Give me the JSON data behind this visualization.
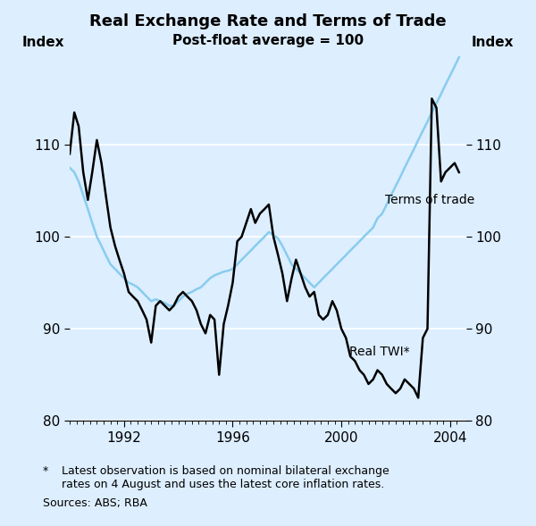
{
  "title": "Real Exchange Rate and Terms of Trade",
  "subtitle": "Post-float average = 100",
  "ylabel_left": "Index",
  "ylabel_right": "Index",
  "footnote_star": "Latest observation is based on nominal bilateral exchange\nrates on 4 August and uses the latest core inflation rates.",
  "footnote_sources": "Sources: ABS; RBA",
  "background_color": "#ddeeff",
  "plot_bg_color": "#ddeeff",
  "ylim": [
    80,
    120
  ],
  "yticks": [
    80,
    90,
    100,
    110
  ],
  "xlim_start": 1990.0,
  "xlim_end": 2004.6,
  "xtick_labels": [
    "1992",
    "1996",
    "2000",
    "2004"
  ],
  "xtick_positions": [
    1992,
    1996,
    2000,
    2004
  ],
  "twi_color": "#000000",
  "tot_color": "#88ccee",
  "twi_label": "Real TWI*",
  "tot_label": "Terms of trade",
  "twi_linewidth": 1.8,
  "tot_linewidth": 1.8,
  "real_twi": {
    "x": [
      1990.0,
      1990.17,
      1990.33,
      1990.5,
      1990.67,
      1990.83,
      1991.0,
      1991.17,
      1991.33,
      1991.5,
      1991.67,
      1991.83,
      1992.0,
      1992.17,
      1992.33,
      1992.5,
      1992.67,
      1992.83,
      1993.0,
      1993.17,
      1993.33,
      1993.5,
      1993.67,
      1993.83,
      1994.0,
      1994.17,
      1994.33,
      1994.5,
      1994.67,
      1994.83,
      1995.0,
      1995.17,
      1995.33,
      1995.5,
      1995.67,
      1995.83,
      1996.0,
      1996.17,
      1996.33,
      1996.5,
      1996.67,
      1996.83,
      1997.0,
      1997.17,
      1997.33,
      1997.5,
      1997.67,
      1997.83,
      1998.0,
      1998.17,
      1998.33,
      1998.5,
      1998.67,
      1998.83,
      1999.0,
      1999.17,
      1999.33,
      1999.5,
      1999.67,
      1999.83,
      2000.0,
      2000.17,
      2000.33,
      2000.5,
      2000.67,
      2000.83,
      2001.0,
      2001.17,
      2001.33,
      2001.5,
      2001.67,
      2001.83,
      2002.0,
      2002.17,
      2002.33,
      2002.5,
      2002.67,
      2002.83,
      2003.0,
      2003.17,
      2003.33,
      2003.5,
      2003.67,
      2003.83,
      2004.0,
      2004.17,
      2004.33
    ],
    "y": [
      109.0,
      113.5,
      112.0,
      107.0,
      104.0,
      107.0,
      110.5,
      108.0,
      104.5,
      101.0,
      99.0,
      97.5,
      96.0,
      94.0,
      93.5,
      93.0,
      92.0,
      91.0,
      88.5,
      92.5,
      93.0,
      92.5,
      92.0,
      92.5,
      93.5,
      94.0,
      93.5,
      93.0,
      92.0,
      90.5,
      89.5,
      91.5,
      91.0,
      85.0,
      90.5,
      92.5,
      95.0,
      99.5,
      100.0,
      101.5,
      103.0,
      101.5,
      102.5,
      103.0,
      103.5,
      100.0,
      98.0,
      96.0,
      93.0,
      95.5,
      97.5,
      96.0,
      94.5,
      93.5,
      94.0,
      91.5,
      91.0,
      91.5,
      93.0,
      92.0,
      90.0,
      89.0,
      87.0,
      86.5,
      85.5,
      85.0,
      84.0,
      84.5,
      85.5,
      85.0,
      84.0,
      83.5,
      83.0,
      83.5,
      84.5,
      84.0,
      83.5,
      82.5,
      89.0,
      90.0,
      115.0,
      114.0,
      106.0,
      107.0,
      107.5,
      108.0,
      107.0
    ]
  },
  "terms_of_trade": {
    "x": [
      1990.0,
      1990.17,
      1990.33,
      1990.5,
      1990.67,
      1990.83,
      1991.0,
      1991.17,
      1991.33,
      1991.5,
      1991.67,
      1991.83,
      1992.0,
      1992.17,
      1992.33,
      1992.5,
      1992.67,
      1992.83,
      1993.0,
      1993.17,
      1993.33,
      1993.5,
      1993.67,
      1993.83,
      1994.0,
      1994.17,
      1994.33,
      1994.5,
      1994.67,
      1994.83,
      1995.0,
      1995.17,
      1995.33,
      1995.5,
      1995.67,
      1995.83,
      1996.0,
      1996.17,
      1996.33,
      1996.5,
      1996.67,
      1996.83,
      1997.0,
      1997.17,
      1997.33,
      1997.5,
      1997.67,
      1997.83,
      1998.0,
      1998.17,
      1998.33,
      1998.5,
      1998.67,
      1998.83,
      1999.0,
      1999.17,
      1999.33,
      1999.5,
      1999.67,
      1999.83,
      2000.0,
      2000.17,
      2000.33,
      2000.5,
      2000.67,
      2000.83,
      2001.0,
      2001.17,
      2001.33,
      2001.5,
      2001.67,
      2001.83,
      2002.0,
      2002.17,
      2002.33,
      2002.5,
      2002.67,
      2002.83,
      2003.0,
      2003.17,
      2003.33,
      2003.5,
      2003.67,
      2003.83,
      2004.0,
      2004.17,
      2004.33
    ],
    "y": [
      107.5,
      107.0,
      106.0,
      104.5,
      103.0,
      101.5,
      100.0,
      99.0,
      98.0,
      97.0,
      96.5,
      96.0,
      95.5,
      95.0,
      94.8,
      94.5,
      94.0,
      93.5,
      93.0,
      93.2,
      93.0,
      92.8,
      92.5,
      92.5,
      93.0,
      93.5,
      93.8,
      94.0,
      94.3,
      94.5,
      95.0,
      95.5,
      95.8,
      96.0,
      96.2,
      96.3,
      96.5,
      97.0,
      97.5,
      98.0,
      98.5,
      99.0,
      99.5,
      100.0,
      100.5,
      100.2,
      99.8,
      99.0,
      98.0,
      97.0,
      96.5,
      96.0,
      95.5,
      95.0,
      94.5,
      95.0,
      95.5,
      96.0,
      96.5,
      97.0,
      97.5,
      98.0,
      98.5,
      99.0,
      99.5,
      100.0,
      100.5,
      101.0,
      102.0,
      102.5,
      103.5,
      104.5,
      105.5,
      106.5,
      107.5,
      108.5,
      109.5,
      110.5,
      111.5,
      112.5,
      113.5,
      114.5,
      115.5,
      116.5,
      117.5,
      118.5,
      119.5
    ]
  },
  "minor_xticks": [
    1990,
    1990.25,
    1990.5,
    1990.75,
    1991,
    1991.25,
    1991.5,
    1991.75,
    1992,
    1992.25,
    1992.5,
    1992.75,
    1993,
    1993.25,
    1993.5,
    1993.75,
    1994,
    1994.25,
    1994.5,
    1994.75,
    1995,
    1995.25,
    1995.5,
    1995.75,
    1996,
    1996.25,
    1996.5,
    1996.75,
    1997,
    1997.25,
    1997.5,
    1997.75,
    1998,
    1998.25,
    1998.5,
    1998.75,
    1999,
    1999.25,
    1999.5,
    1999.75,
    2000,
    2000.25,
    2000.5,
    2000.75,
    2001,
    2001.25,
    2001.5,
    2001.75,
    2002,
    2002.25,
    2002.5,
    2002.75,
    2003,
    2003.25,
    2003.5,
    2003.75,
    2004,
    2004.25
  ]
}
